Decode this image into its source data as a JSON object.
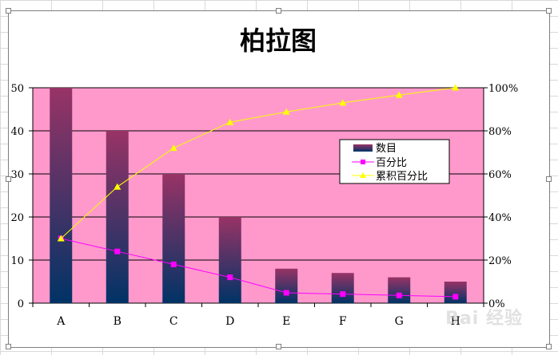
{
  "chart_data": {
    "type": "bar",
    "title": "柏拉图",
    "categories": [
      "A",
      "B",
      "C",
      "D",
      "E",
      "F",
      "G",
      "H"
    ],
    "series": [
      {
        "name": "数目",
        "type": "bar",
        "axis": "left",
        "values": [
          50,
          40,
          30,
          20,
          8,
          7,
          6,
          5
        ]
      },
      {
        "name": "百分比",
        "type": "line",
        "axis": "right",
        "values": [
          30,
          24,
          18,
          12,
          4.8,
          4.2,
          3.6,
          3
        ]
      },
      {
        "name": "累积百分比",
        "type": "line",
        "axis": "right",
        "values": [
          30,
          54,
          72,
          84,
          88.8,
          93,
          96.6,
          100
        ]
      }
    ],
    "y_left": {
      "ylim": [
        0,
        50
      ],
      "ticks": [
        0,
        10,
        20,
        30,
        40,
        50
      ],
      "tick_labels": [
        "0",
        "10",
        "20",
        "30",
        "40",
        "50"
      ]
    },
    "y_right": {
      "ylim": [
        0,
        100
      ],
      "ticks": [
        0,
        20,
        40,
        60,
        80,
        100
      ],
      "tick_labels": [
        "0%",
        "20%",
        "40%",
        "60%",
        "80%",
        "100%"
      ]
    },
    "grid": true,
    "legend": "right",
    "colors": {
      "plot_background": "#ff99cc",
      "bar_top": "#993366",
      "bar_bottom": "#003366",
      "percent_line": "#ff00ff",
      "cumulative_line": "#ffff00"
    }
  },
  "watermark": "Bai 经验"
}
